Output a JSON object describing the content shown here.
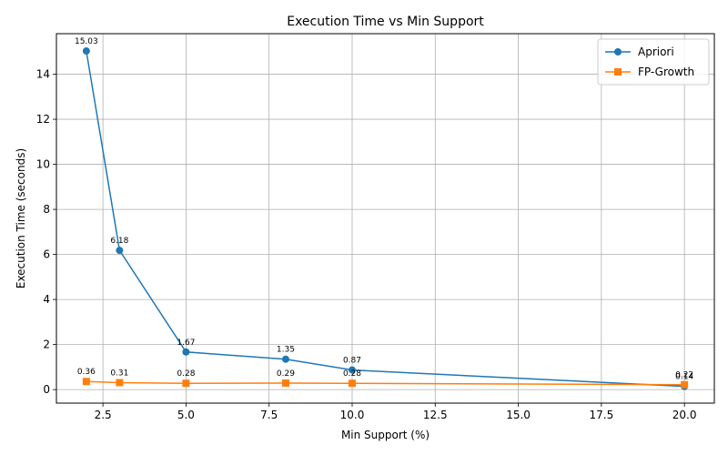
{
  "chart_data": {
    "type": "line",
    "title": "Execution Time vs Min Support",
    "xlabel": "Min Support (%)",
    "ylabel": "Execution Time (seconds)",
    "xlim": [
      1.1,
      20.9
    ],
    "ylim": [
      -0.6,
      15.8
    ],
    "xticks": [
      2.5,
      5.0,
      7.5,
      10.0,
      12.5,
      15.0,
      17.5,
      20.0
    ],
    "yticks": [
      0,
      2,
      4,
      6,
      8,
      10,
      12,
      14
    ],
    "grid": true,
    "legend_position": "top-right",
    "x": [
      2,
      3,
      5,
      8,
      10,
      20
    ],
    "series": [
      {
        "name": "Apriori",
        "color": "#1f77b4",
        "marker": "circle",
        "values": [
          15.03,
          6.18,
          1.67,
          1.35,
          0.87,
          0.14
        ],
        "labels": [
          "15.03",
          "6.18",
          "1.67",
          "1.35",
          "0.87",
          "0.14"
        ]
      },
      {
        "name": "FP-Growth",
        "color": "#ff7f0e",
        "marker": "square",
        "values": [
          0.36,
          0.31,
          0.28,
          0.29,
          0.28,
          0.22
        ],
        "labels": [
          "0.36",
          "0.31",
          "0.28",
          "0.29",
          "0.28",
          "0.22"
        ]
      }
    ]
  }
}
